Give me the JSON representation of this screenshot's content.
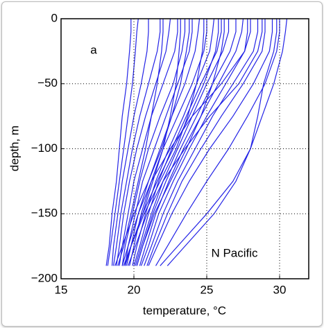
{
  "chart_data": {
    "type": "line",
    "xlabel": "temperature, °C",
    "ylabel": "depth, m",
    "annotations": [
      "a",
      "N Pacific"
    ],
    "xlim": [
      15,
      32
    ],
    "xticks": [
      15,
      20,
      25,
      30
    ],
    "ylim": [
      -200,
      0
    ],
    "yticks": [
      {
        "value": -200,
        "label": "−200"
      },
      {
        "value": -150,
        "label": "−150"
      },
      {
        "value": -100,
        "label": "−100"
      },
      {
        "value": -50,
        "label": "−50"
      },
      0
    ],
    "grid": true,
    "color": "#2222e6",
    "y": [
      0,
      -10,
      -25,
      -50,
      -75,
      -100,
      -125,
      -150,
      -175,
      -190
    ],
    "series": [
      {
        "values": [
          19.8,
          19.8,
          19.7,
          19.5,
          19.2,
          19.0,
          18.8,
          18.5,
          18.3,
          18.1
        ]
      },
      {
        "values": [
          20.3,
          20.2,
          20.1,
          19.9,
          19.6,
          19.3,
          19.0,
          18.7,
          18.4,
          18.2
        ]
      },
      {
        "values": [
          21.0,
          21.0,
          20.9,
          20.5,
          20.0,
          19.6,
          19.2,
          18.9,
          18.6,
          18.5
        ]
      },
      {
        "values": [
          21.8,
          21.8,
          21.6,
          21.0,
          20.4,
          19.9,
          19.5,
          19.1,
          18.8,
          18.6
        ]
      },
      {
        "values": [
          22.5,
          22.4,
          22.2,
          21.5,
          20.8,
          20.2,
          19.7,
          19.3,
          19.0,
          18.8
        ]
      },
      {
        "values": [
          23.0,
          23.0,
          22.8,
          22.0,
          21.2,
          20.6,
          20.0,
          19.6,
          19.2,
          19.0
        ]
      },
      {
        "values": [
          23.5,
          23.5,
          23.3,
          22.7,
          21.8,
          21.0,
          20.4,
          19.9,
          19.4,
          19.2
        ]
      },
      {
        "values": [
          24.0,
          24.0,
          23.8,
          23.0,
          22.2,
          21.4,
          20.6,
          20.1,
          19.6,
          19.4
        ]
      },
      {
        "values": [
          24.5,
          24.4,
          24.2,
          23.5,
          22.6,
          21.8,
          21.0,
          20.3,
          19.8,
          19.5
        ]
      },
      {
        "values": [
          25.0,
          25.0,
          24.8,
          24.0,
          23.0,
          22.0,
          21.2,
          20.5,
          20.0,
          19.7
        ]
      },
      {
        "values": [
          25.5,
          25.4,
          25.2,
          24.3,
          23.4,
          22.4,
          21.5,
          20.8,
          20.2,
          19.9
        ]
      },
      {
        "values": [
          26.0,
          26.0,
          25.7,
          24.6,
          23.6,
          22.6,
          21.7,
          21.0,
          20.4,
          20.0
        ]
      },
      {
        "values": [
          26.5,
          26.5,
          26.1,
          25.0,
          24.0,
          23.0,
          22.0,
          21.2,
          20.5,
          20.1
        ]
      },
      {
        "values": [
          27.0,
          27.0,
          26.6,
          25.4,
          24.3,
          23.2,
          22.2,
          21.3,
          20.6,
          20.2
        ]
      },
      {
        "values": [
          27.5,
          27.4,
          27.0,
          25.8,
          24.6,
          23.4,
          22.4,
          21.5,
          20.8,
          20.4
        ]
      },
      {
        "values": [
          28.0,
          28.0,
          27.6,
          26.3,
          25.0,
          23.8,
          22.7,
          21.7,
          21.0,
          20.5
        ]
      },
      {
        "values": [
          28.5,
          28.5,
          28.2,
          26.8,
          25.4,
          24.2,
          23.0,
          22.0,
          21.2,
          20.7
        ]
      },
      {
        "values": [
          29.0,
          29.0,
          28.8,
          27.5,
          26.0,
          24.6,
          23.3,
          22.3,
          21.4,
          20.9
        ]
      },
      {
        "values": [
          29.5,
          29.5,
          29.3,
          28.2,
          26.8,
          25.2,
          23.8,
          22.6,
          21.6,
          21.0
        ]
      },
      {
        "values": [
          30.0,
          30.0,
          29.8,
          29.0,
          27.8,
          26.5,
          25.0,
          23.6,
          22.3,
          21.5
        ]
      },
      {
        "values": [
          30.5,
          30.4,
          30.2,
          29.6,
          28.8,
          28.0,
          27.0,
          25.5,
          23.5,
          22.3
        ]
      },
      {
        "values": [
          29.8,
          29.8,
          29.6,
          28.9,
          28.5,
          28.0,
          26.8,
          25.0,
          23.0,
          21.8
        ]
      },
      {
        "values": [
          22.0,
          22.0,
          21.9,
          21.6,
          21.2,
          20.8,
          20.3,
          19.8,
          19.3,
          18.9
        ]
      },
      {
        "values": [
          23.8,
          23.8,
          23.6,
          23.2,
          22.6,
          21.9,
          21.0,
          20.0,
          19.2,
          18.7
        ]
      },
      {
        "values": [
          24.8,
          24.8,
          24.7,
          24.3,
          23.7,
          22.9,
          21.8,
          20.7,
          19.8,
          19.3
        ]
      },
      {
        "values": [
          26.2,
          26.2,
          26.0,
          25.4,
          24.6,
          23.6,
          22.5,
          21.4,
          20.6,
          20.2
        ]
      },
      {
        "values": [
          28.8,
          28.8,
          28.5,
          27.2,
          25.2,
          23.5,
          22.0,
          20.9,
          20.1,
          19.6
        ]
      },
      {
        "values": [
          27.8,
          27.8,
          27.6,
          26.0,
          24.0,
          22.5,
          21.2,
          20.3,
          19.6,
          19.2
        ]
      },
      {
        "values": [
          23.2,
          23.2,
          23.1,
          22.9,
          22.5,
          22.0,
          21.3,
          20.6,
          19.8,
          19.3
        ]
      },
      {
        "values": [
          25.8,
          25.8,
          25.6,
          24.8,
          23.8,
          22.7,
          21.6,
          20.6,
          19.8,
          19.4
        ]
      }
    ]
  }
}
